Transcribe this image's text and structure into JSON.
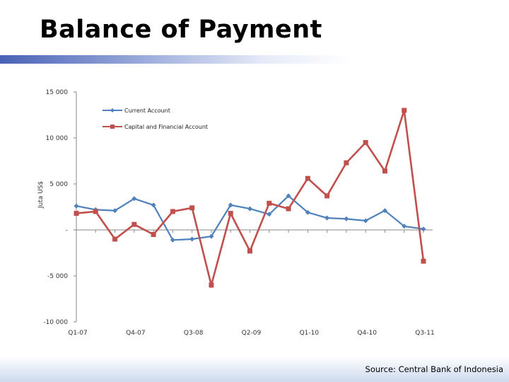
{
  "slide": {
    "title": "Balance of Payment",
    "source": "Source: Central Bank of Indonesia"
  },
  "colors": {
    "current_account": "#4f81bd",
    "capital_account": "#c0504d",
    "title_bar": "#4a62b5"
  },
  "chart_data": {
    "type": "line",
    "ylabel": "Juta US$",
    "ylim": [
      -10000,
      15000
    ],
    "yticks": [
      15000,
      10000,
      5000,
      0,
      -5000,
      -10000
    ],
    "ytick_labels": [
      "15 000",
      "10 000",
      "5 000",
      "-",
      "-5 000",
      "-10 000"
    ],
    "x_count": 19,
    "x_labels": [
      {
        "index": 0,
        "label": "Q1-07"
      },
      {
        "index": 3,
        "label": "Q4-07"
      },
      {
        "index": 6,
        "label": "Q3-08"
      },
      {
        "index": 9,
        "label": "Q2-09"
      },
      {
        "index": 12,
        "label": "Q1-10"
      },
      {
        "index": 15,
        "label": "Q4-10"
      },
      {
        "index": 18,
        "label": "Q3-11"
      }
    ],
    "legend_placement": "top-left",
    "grid": false,
    "series": [
      {
        "name": "Current Account",
        "marker": "diamond",
        "values": [
          2600,
          2200,
          2100,
          3400,
          2700,
          -1100,
          -1000,
          -700,
          2700,
          2300,
          1700,
          3700,
          1900,
          1300,
          1200,
          1000,
          2100,
          400,
          100
        ]
      },
      {
        "name": "Capital and Financial Account",
        "marker": "square",
        "values": [
          1800,
          2000,
          -1000,
          600,
          -500,
          2000,
          2400,
          -6000,
          1800,
          -2300,
          2900,
          2300,
          5600,
          3700,
          7300,
          9500,
          6400,
          13000,
          -3400
        ]
      }
    ]
  }
}
